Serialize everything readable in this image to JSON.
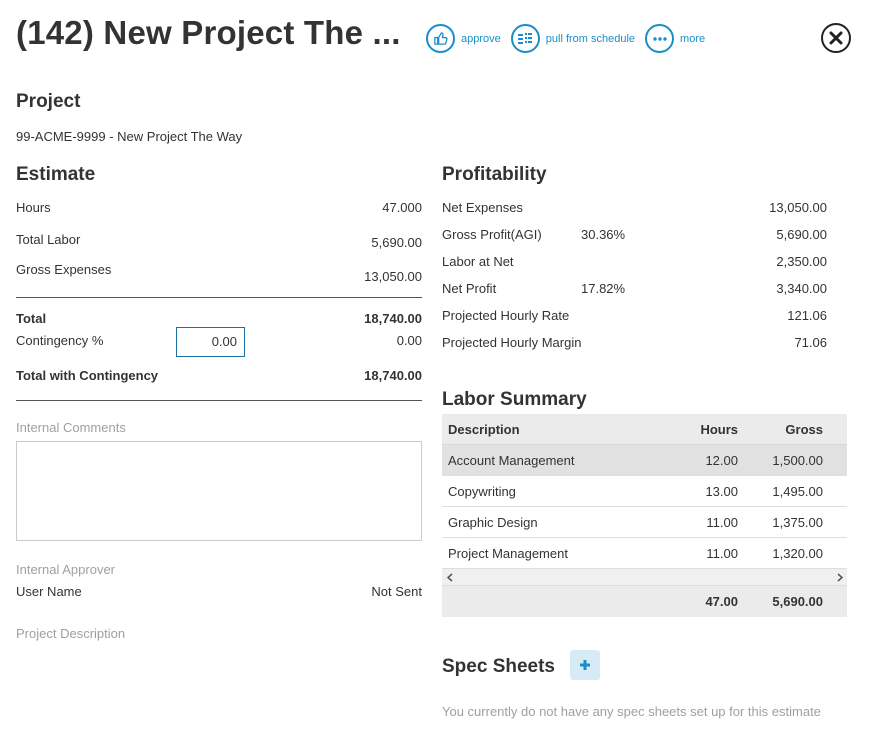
{
  "header": {
    "title": "(142) New Project The ...",
    "actions": [
      {
        "icon": "thumbs-up-icon",
        "label": "approve"
      },
      {
        "icon": "list-icon",
        "label": "pull from schedule"
      },
      {
        "icon": "more-dots-icon",
        "label": "more"
      }
    ],
    "close_icon": "close-icon"
  },
  "project": {
    "heading": "Project",
    "link": "99-ACME-9999 - New Project The Way"
  },
  "estimate": {
    "heading": "Estimate",
    "hours_label": "Hours",
    "hours_value": "47.000",
    "labor_label": "Total Labor",
    "labor_value": "5,690.00",
    "expenses_label": "Gross Expenses",
    "expenses_value": "13,050.00",
    "total_label": "Total",
    "total_value": "18,740.00",
    "contingency_label": "Contingency %",
    "contingency_input": "0.00",
    "contingency_value": "0.00",
    "total_contingency_label": "Total with Contingency",
    "total_contingency_value": "18,740.00"
  },
  "comments": {
    "label": "Internal Comments",
    "value": ""
  },
  "approver": {
    "label": "Internal Approver",
    "user": "User Name",
    "status": "Not Sent"
  },
  "description": {
    "label": "Project Description"
  },
  "profitability": {
    "heading": "Profitability",
    "rows": [
      {
        "label": "Net Expenses",
        "pct": "",
        "value": "13,050.00"
      },
      {
        "label": "Gross Profit(AGI)",
        "pct": "30.36%",
        "value": "5,690.00"
      },
      {
        "label": "Labor at Net",
        "pct": "",
        "value": "2,350.00"
      },
      {
        "label": "Net Profit",
        "pct": "17.82%",
        "value": "3,340.00"
      },
      {
        "label": "Projected Hourly Rate",
        "pct": "",
        "value": "121.06"
      },
      {
        "label": "Projected Hourly Margin",
        "pct": "",
        "value": "71.06"
      }
    ]
  },
  "labor_summary": {
    "heading": "Labor Summary",
    "columns": {
      "description": "Description",
      "hours": "Hours",
      "gross": "Gross"
    },
    "rows": [
      {
        "description": "Account Management",
        "hours": "12.00",
        "gross": "1,500.00"
      },
      {
        "description": "Copywriting",
        "hours": "13.00",
        "gross": "1,495.00"
      },
      {
        "description": "Graphic Design",
        "hours": "11.00",
        "gross": "1,375.00"
      },
      {
        "description": "Project Management",
        "hours": "11.00",
        "gross": "1,320.00"
      }
    ],
    "totals": {
      "hours": "47.00",
      "gross": "5,690.00"
    }
  },
  "spec_sheets": {
    "heading": "Spec Sheets",
    "add_icon": "plus-icon",
    "empty_message": "You currently do not have any spec sheets set up for this estimate"
  },
  "colors": {
    "accent": "#1a8fc7",
    "muted": "#a0a0a0"
  }
}
